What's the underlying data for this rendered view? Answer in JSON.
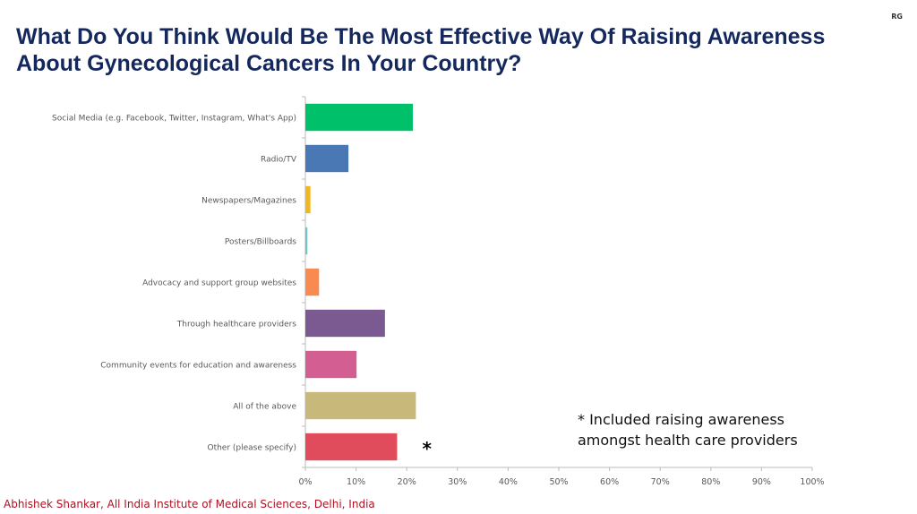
{
  "header": {
    "title_line1": "What Do You Think Would Be The Most Effective Way Of Raising Awareness",
    "title_line2": "About Gynecological Cancers In Your Country?",
    "corner_mark": "RG"
  },
  "footer": {
    "credit": "Abhishek Shankar, All India Institute of Medical Sciences, Delhi, India"
  },
  "note": {
    "line1": "* Included raising awareness",
    "line2": "amongst health care providers"
  },
  "chart_data": {
    "type": "bar",
    "orientation": "horizontal",
    "categories": [
      "Social Media (e.g. Facebook, Twitter, Instagram, What's App)",
      "Radio/TV",
      "Newspapers/Magazines",
      "Posters/Billboards",
      "Advocacy and support group websites",
      "Through healthcare providers",
      "Community events for education and awareness",
      "All of the above",
      "Other (please specify)"
    ],
    "values": [
      21.2,
      8.5,
      1.0,
      0.4,
      2.7,
      15.7,
      10.1,
      21.8,
      18.1
    ],
    "colors": [
      "#00c06a",
      "#4a78b5",
      "#f2b620",
      "#6fc6c8",
      "#f98a50",
      "#7b5a91",
      "#d35e92",
      "#c8b87a",
      "#e04c5c"
    ],
    "annotations": [
      {
        "category": "Other (please specify)",
        "text": "*"
      }
    ],
    "xlim": [
      0,
      100
    ],
    "xticks": [
      "0%",
      "10%",
      "20%",
      "30%",
      "40%",
      "50%",
      "60%",
      "70%",
      "80%",
      "90%",
      "100%"
    ],
    "unit": "%",
    "grid": false
  }
}
